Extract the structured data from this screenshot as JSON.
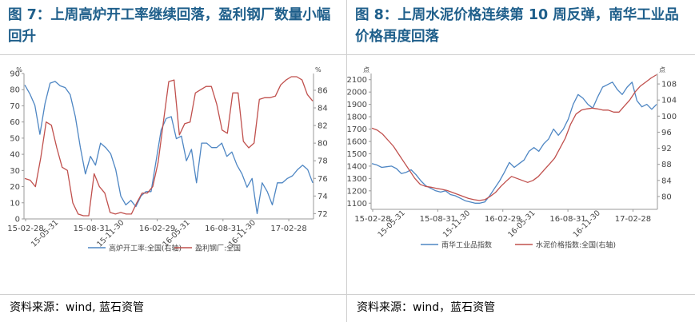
{
  "left": {
    "title": "图 7：上周高炉开工率继续回落，盈利钢厂数量小幅回升",
    "source": "资料来源：wind, 蓝石资管"
  },
  "right": {
    "title": "图 8：上周水泥价格连续第 10 周反弹，南华工业品价格再度回落",
    "source": "资料来源：wind，蓝石资管"
  },
  "chart_data": [
    {
      "type": "line",
      "x_tick_labels": [
        "15-02-28",
        "15-08-31",
        "16-02-29",
        "16-08-31",
        "17-02-28"
      ],
      "x_tick_labels_rotated": [
        "15-05-31",
        "15-11-30",
        "16-05-31",
        "16-11-30"
      ],
      "left_axis": {
        "unit": "%",
        "ylim": [
          0,
          90
        ],
        "ticks": [
          0,
          10,
          20,
          30,
          40,
          50,
          60,
          70,
          80,
          90
        ]
      },
      "right_axis": {
        "unit": "%",
        "ylim": [
          71.4,
          87.9
        ],
        "ticks": [
          72,
          74,
          76,
          78,
          80,
          82,
          84,
          86
        ]
      },
      "grid": false,
      "legend_position": "bottom",
      "series": [
        {
          "name": "高炉开工率:全国(右轴)",
          "axis": "right",
          "color": "#4e86c3",
          "values": [
            86.6,
            85.6,
            84.3,
            81.0,
            84.5,
            86.8,
            87.0,
            86.5,
            86.3,
            85.5,
            83.0,
            79.5,
            76.5,
            78.5,
            77.5,
            80.0,
            79.5,
            78.8,
            77.0,
            74.0,
            73.0,
            73.5,
            72.8,
            74.0,
            74.5,
            74.5,
            78.0,
            81.5,
            82.8,
            83.0,
            80.5,
            80.8,
            78.0,
            79.3,
            75.5,
            80.0,
            80.0,
            79.5,
            79.5,
            80.0,
            78.5,
            79.0,
            77.5,
            76.5,
            75.0,
            76.0,
            72.0,
            75.5,
            74.5,
            73.0,
            75.5,
            75.5,
            76.0,
            76.3,
            77.0,
            77.5,
            77.0,
            75.5
          ]
        },
        {
          "name": "盈利钢厂:全国",
          "axis": "left",
          "color": "#c0504d",
          "values": [
            25,
            24,
            20,
            38,
            60,
            58,
            44,
            32,
            30,
            10,
            3,
            2,
            2,
            28,
            20,
            16,
            4,
            3,
            4,
            3,
            3,
            10,
            16,
            16,
            20,
            35,
            60,
            85,
            86,
            52,
            59,
            60,
            78,
            80,
            82,
            82,
            71,
            55,
            53,
            78,
            78,
            48,
            44,
            47,
            74,
            75,
            75,
            76,
            83,
            86,
            88,
            88,
            86,
            77,
            73
          ]
        }
      ]
    },
    {
      "type": "line",
      "x_tick_labels": [
        "15-02-28",
        "15-08-31",
        "16-02-29",
        "16-08-31",
        "17-02-28"
      ],
      "x_tick_labels_rotated": [
        "15-05-31",
        "15-11-30",
        "16-05-31",
        "16-11-30"
      ],
      "left_axis": {
        "unit": "点",
        "ylim": [
          1050,
          2150
        ],
        "ticks": [
          1100,
          1200,
          1300,
          1400,
          1500,
          1600,
          1700,
          1800,
          1900,
          2000,
          2100
        ]
      },
      "right_axis": {
        "unit": "点",
        "ylim": [
          76.8,
          110.6
        ],
        "ticks": [
          80,
          84,
          88,
          92,
          96,
          100,
          104,
          108
        ]
      },
      "grid": false,
      "legend_position": "bottom",
      "series": [
        {
          "name": "南华工业品指数",
          "axis": "left",
          "color": "#4e86c3",
          "values": [
            1420,
            1410,
            1390,
            1395,
            1400,
            1380,
            1340,
            1350,
            1370,
            1330,
            1280,
            1240,
            1220,
            1200,
            1190,
            1200,
            1170,
            1160,
            1140,
            1120,
            1110,
            1100,
            1100,
            1110,
            1160,
            1220,
            1280,
            1350,
            1430,
            1390,
            1420,
            1450,
            1520,
            1550,
            1520,
            1580,
            1620,
            1700,
            1650,
            1700,
            1780,
            1900,
            1980,
            1950,
            1900,
            1870,
            1960,
            2040,
            2060,
            2080,
            2020,
            1980,
            2040,
            2080,
            1930,
            1880,
            1900,
            1860,
            1900
          ]
        },
        {
          "name": "水泥价格指数:全国(右轴)",
          "axis": "right",
          "color": "#c0504d",
          "values": [
            97,
            96.5,
            95.5,
            94,
            92.5,
            90.5,
            88.5,
            86.5,
            84.5,
            83,
            82.5,
            82.3,
            82,
            81.8,
            81.5,
            81,
            80.5,
            80,
            79.5,
            79.2,
            79,
            79.2,
            80,
            81,
            82.5,
            83.8,
            85,
            84.5,
            84,
            83.5,
            84,
            85,
            86.5,
            88,
            89.5,
            92,
            94.5,
            98,
            100.5,
            101.5,
            101.8,
            102,
            101.8,
            101.5,
            101.5,
            101,
            101,
            102.5,
            104,
            106,
            107.5,
            108.5,
            109.5,
            110.3
          ]
        }
      ]
    }
  ]
}
